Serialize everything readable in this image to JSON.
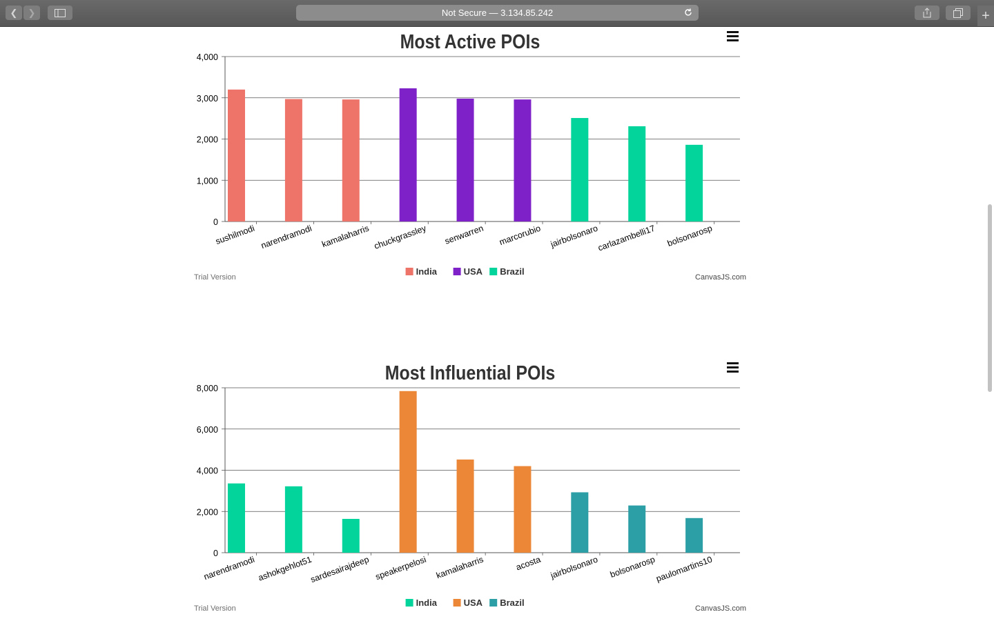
{
  "browser": {
    "address": "Not Secure — 3.134.85.242"
  },
  "chart_data": [
    {
      "type": "bar",
      "title": "Most Active POIs",
      "categories": [
        "sushilmodi",
        "narendramodi",
        "kamalaharris",
        "chuckgrassley",
        "senwarren",
        "marcorubio",
        "jairbolsonaro",
        "carlazambelli17",
        "bolsonarosp"
      ],
      "series": [
        {
          "name": "India",
          "color": "#ee7369",
          "values": [
            3200,
            2970,
            2960,
            null,
            null,
            null,
            null,
            null,
            null
          ]
        },
        {
          "name": "USA",
          "color": "#7e21c9",
          "values": [
            null,
            null,
            null,
            3230,
            2980,
            2960,
            null,
            null,
            null
          ]
        },
        {
          "name": "Brazil",
          "color": "#02d49b",
          "values": [
            null,
            null,
            null,
            null,
            null,
            null,
            2510,
            2310,
            1860
          ]
        }
      ],
      "ylim": [
        0,
        4000
      ],
      "yticks": [
        "0",
        "1,000",
        "2,000",
        "3,000",
        "4,000"
      ],
      "legend_placement": "bottom-center",
      "grid": true,
      "footer_left": "Trial Version",
      "footer_right": "CanvasJS.com"
    },
    {
      "type": "bar",
      "title": "Most Influential POIs",
      "categories": [
        "narendramodi",
        "ashokgehlot51",
        "sardesairajdeep",
        "speakerpelosi",
        "kamalaharris",
        "acosta",
        "jairbolsonaro",
        "bolsonarosp",
        "paulomartins10"
      ],
      "series": [
        {
          "name": "India",
          "color": "#02d49b",
          "values": [
            3360,
            3220,
            1640,
            null,
            null,
            null,
            null,
            null,
            null
          ]
        },
        {
          "name": "USA",
          "color": "#ec8738",
          "values": [
            null,
            null,
            null,
            7840,
            4520,
            4200,
            null,
            null,
            null
          ]
        },
        {
          "name": "Brazil",
          "color": "#2b9fa5",
          "values": [
            null,
            null,
            null,
            null,
            null,
            null,
            2930,
            2290,
            1680
          ]
        }
      ],
      "ylim": [
        0,
        8000
      ],
      "yticks": [
        "0",
        "2,000",
        "4,000",
        "6,000",
        "8,000"
      ],
      "legend_placement": "bottom-center",
      "grid": true,
      "footer_left": "Trial Version",
      "footer_right": "CanvasJS.com"
    }
  ]
}
